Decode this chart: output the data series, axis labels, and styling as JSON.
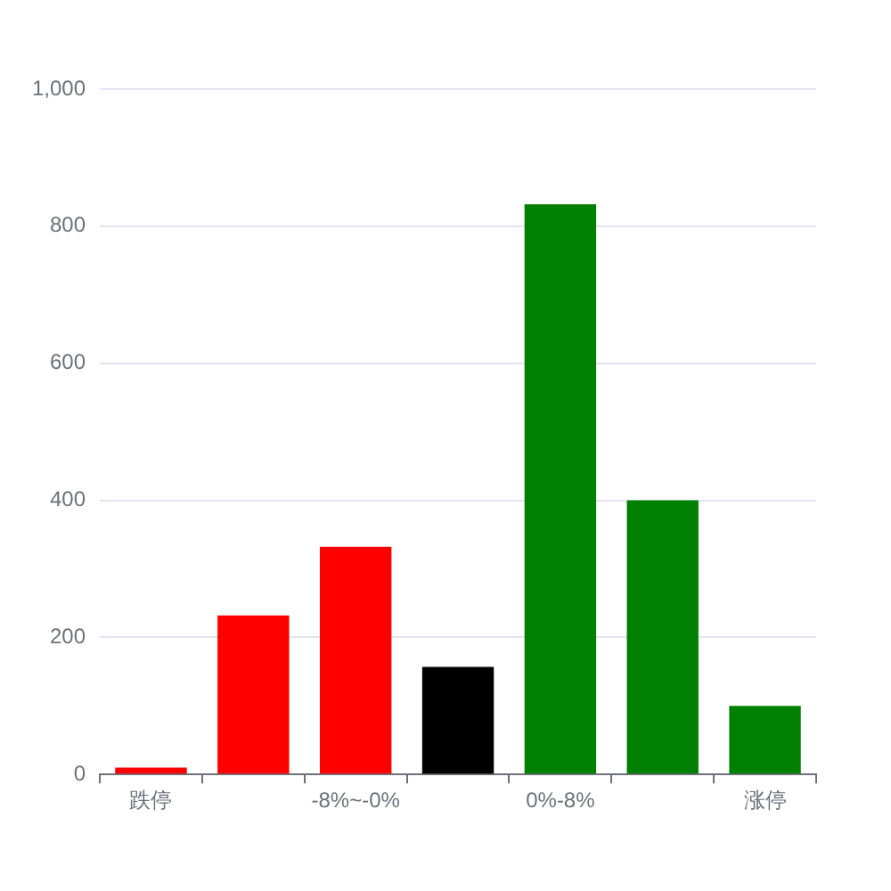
{
  "chart_data": {
    "type": "bar",
    "categories": [
      "跌停",
      null,
      "-8%~-0%",
      null,
      "0%-8%",
      null,
      "涨停"
    ],
    "values": [
      10,
      232,
      332,
      157,
      832,
      400,
      100
    ],
    "colors": [
      "#ff0000",
      "#ff0000",
      "#ff0000",
      "#000000",
      "#008000",
      "#008000",
      "#008000"
    ],
    "ylim": [
      0,
      1000
    ],
    "yticks": [
      0,
      200,
      400,
      600,
      800,
      {
        "value": 1000,
        "label": "1,000"
      }
    ],
    "grid": "y"
  }
}
